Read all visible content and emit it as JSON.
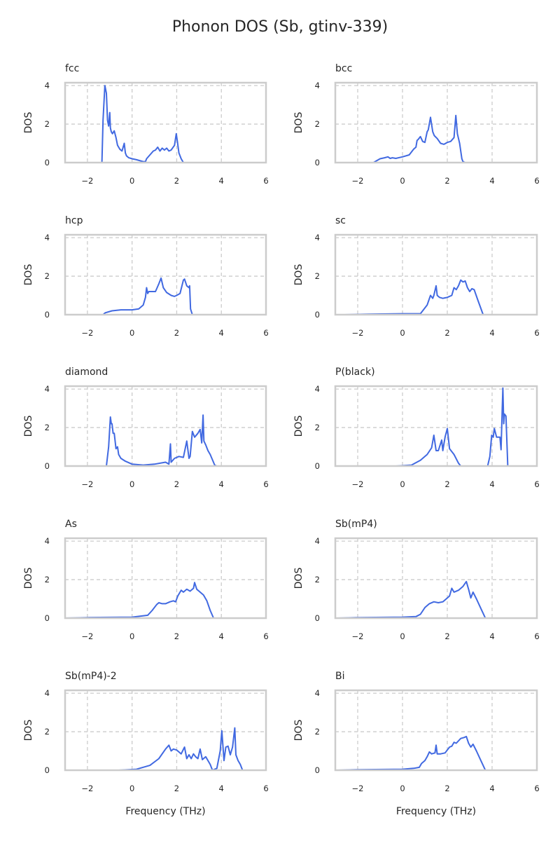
{
  "figure": {
    "title": "Phonon DOS (Sb, gtinv-339)"
  },
  "colors": {
    "line": "#4169e1",
    "frame": "#cccccc",
    "grid": "#cccccc",
    "text": "#262626"
  },
  "chart_data": [
    {
      "type": "line",
      "title": "fcc",
      "xlabel": "",
      "ylabel": "DOS",
      "xlim": [
        -3,
        6
      ],
      "ylim": [
        0,
        4.15
      ],
      "xticks": [
        "−2",
        "0",
        "2",
        "4",
        "6"
      ],
      "xtick_values": [
        -2,
        0,
        2,
        4,
        6
      ],
      "yticks": [
        "0",
        "2",
        "4"
      ],
      "ytick_values": [
        0,
        2,
        4
      ],
      "grid": true,
      "x": [
        -1.7,
        -1.35,
        -1.3,
        -1.22,
        -1.15,
        -1.1,
        -1.05,
        -1.0,
        -0.97,
        -0.93,
        -0.88,
        -0.8,
        -0.72,
        -0.65,
        -0.55,
        -0.45,
        -0.35,
        -0.3,
        -0.25,
        -0.15,
        0.0,
        0.2,
        0.5,
        0.6,
        0.65,
        0.8,
        0.95,
        1.05,
        1.15,
        1.25,
        1.35,
        1.45,
        1.55,
        1.65,
        1.75,
        1.9,
        1.98,
        2.03,
        2.1,
        2.2,
        2.3,
        2.6
      ],
      "y": [
        0,
        0,
        2.2,
        4.0,
        3.6,
        2.2,
        1.9,
        2.6,
        1.8,
        1.6,
        1.5,
        1.65,
        1.3,
        0.9,
        0.7,
        0.6,
        1.0,
        0.5,
        0.35,
        0.25,
        0.2,
        0.15,
        0.05,
        0.05,
        0.2,
        0.4,
        0.6,
        0.65,
        0.8,
        0.6,
        0.75,
        0.65,
        0.75,
        0.6,
        0.65,
        0.9,
        1.5,
        1.1,
        0.5,
        0.2,
        0.0,
        0.0
      ]
    },
    {
      "type": "line",
      "title": "bcc",
      "xlabel": "",
      "ylabel": "DOS",
      "xlim": [
        -3,
        6
      ],
      "ylim": [
        0,
        4.15
      ],
      "xticks": [
        "−2",
        "0",
        "2",
        "4",
        "6"
      ],
      "xtick_values": [
        -2,
        0,
        2,
        4,
        6
      ],
      "yticks": [
        "0",
        "2",
        "4"
      ],
      "ytick_values": [
        0,
        2,
        4
      ],
      "grid": true,
      "x": [
        -1.7,
        -1.3,
        -1.0,
        -0.8,
        -0.65,
        -0.55,
        -0.45,
        -0.3,
        0.0,
        0.3,
        0.5,
        0.6,
        0.65,
        0.7,
        0.8,
        0.9,
        1.0,
        1.1,
        1.15,
        1.25,
        1.35,
        1.42,
        1.55,
        1.7,
        1.85,
        2.0,
        2.15,
        2.3,
        2.38,
        2.45,
        2.55,
        2.65,
        2.7,
        2.8,
        3.0
      ],
      "y": [
        0,
        0,
        0.2,
        0.25,
        0.3,
        0.22,
        0.25,
        0.22,
        0.3,
        0.4,
        0.7,
        0.8,
        1.15,
        1.2,
        1.35,
        1.1,
        1.05,
        1.6,
        1.7,
        2.35,
        1.6,
        1.4,
        1.25,
        1.0,
        0.95,
        1.05,
        1.1,
        1.3,
        2.45,
        1.5,
        1.0,
        0.2,
        0.05,
        0,
        0
      ]
    },
    {
      "type": "line",
      "title": "hcp",
      "xlabel": "",
      "ylabel": "DOS",
      "xlim": [
        -3,
        6
      ],
      "ylim": [
        0,
        4.15
      ],
      "xticks": [
        "−2",
        "0",
        "2",
        "4",
        "6"
      ],
      "xtick_values": [
        -2,
        0,
        2,
        4,
        6
      ],
      "yticks": [
        "0",
        "2",
        "4"
      ],
      "ytick_values": [
        0,
        2,
        4
      ],
      "grid": true,
      "x": [
        -1.7,
        -1.3,
        -1.2,
        -0.9,
        -0.5,
        0.0,
        0.3,
        0.5,
        0.6,
        0.65,
        0.7,
        0.75,
        0.8,
        0.9,
        1.05,
        1.2,
        1.3,
        1.4,
        1.55,
        1.75,
        1.9,
        2.0,
        2.15,
        2.3,
        2.35,
        2.45,
        2.55,
        2.58,
        2.62,
        2.7,
        3.0
      ],
      "y": [
        0,
        0,
        0.1,
        0.2,
        0.25,
        0.25,
        0.3,
        0.5,
        0.9,
        1.4,
        1.1,
        1.2,
        1.2,
        1.2,
        1.2,
        1.6,
        1.9,
        1.4,
        1.15,
        1.0,
        0.95,
        1.0,
        1.1,
        1.8,
        1.85,
        1.5,
        1.4,
        1.5,
        0.3,
        0.0,
        0.0
      ]
    },
    {
      "type": "line",
      "title": "sc",
      "xlabel": "",
      "ylabel": "DOS",
      "xlim": [
        -3,
        6
      ],
      "ylim": [
        0,
        4.15
      ],
      "xticks": [
        "−2",
        "0",
        "2",
        "4",
        "6"
      ],
      "xtick_values": [
        -2,
        0,
        2,
        4,
        6
      ],
      "yticks": [
        "0",
        "2",
        "4"
      ],
      "ytick_values": [
        0,
        2,
        4
      ],
      "grid": true,
      "x": [
        -2.6,
        -1.5,
        0.0,
        0.8,
        0.9,
        1.1,
        1.25,
        1.35,
        1.4,
        1.5,
        1.55,
        1.65,
        1.8,
        2.0,
        2.2,
        2.3,
        2.4,
        2.5,
        2.6,
        2.7,
        2.8,
        2.9,
        3.0,
        3.1,
        3.2,
        3.35,
        3.6,
        4.2
      ],
      "y": [
        0,
        0.03,
        0.05,
        0.05,
        0.2,
        0.5,
        1.0,
        0.85,
        1.0,
        1.5,
        1.0,
        0.9,
        0.85,
        0.9,
        1.0,
        1.4,
        1.3,
        1.5,
        1.8,
        1.7,
        1.75,
        1.4,
        1.2,
        1.35,
        1.3,
        0.8,
        0.0,
        0.0
      ]
    },
    {
      "type": "line",
      "title": "diamond",
      "xlabel": "",
      "ylabel": "DOS",
      "xlim": [
        -3,
        6
      ],
      "ylim": [
        0,
        4.15
      ],
      "xticks": [
        "−2",
        "0",
        "2",
        "4",
        "6"
      ],
      "xtick_values": [
        -2,
        0,
        2,
        4,
        6
      ],
      "yticks": [
        "0",
        "2",
        "4"
      ],
      "ytick_values": [
        0,
        2,
        4
      ],
      "grid": true,
      "x": [
        -1.7,
        -1.15,
        -1.05,
        -0.97,
        -0.93,
        -0.9,
        -0.85,
        -0.8,
        -0.72,
        -0.65,
        -0.6,
        -0.5,
        -0.3,
        0.0,
        0.5,
        1.0,
        1.5,
        1.65,
        1.72,
        1.75,
        1.9,
        2.1,
        2.3,
        2.45,
        2.55,
        2.6,
        2.7,
        2.8,
        2.95,
        3.05,
        3.12,
        3.18,
        3.22,
        3.3,
        3.4,
        3.5,
        3.7,
        3.8,
        4.2
      ],
      "y": [
        0,
        0,
        1.0,
        2.55,
        2.2,
        2.2,
        1.7,
        1.7,
        0.9,
        1.0,
        0.6,
        0.4,
        0.25,
        0.1,
        0.05,
        0.1,
        0.2,
        0.1,
        1.15,
        0.2,
        0.4,
        0.5,
        0.45,
        1.3,
        0.4,
        0.5,
        1.8,
        1.5,
        1.7,
        1.9,
        1.2,
        2.65,
        1.3,
        1.1,
        0.8,
        0.6,
        0.05,
        0.0,
        0.0
      ]
    },
    {
      "type": "line",
      "title": "P(black)",
      "xlabel": "",
      "ylabel": "DOS",
      "xlim": [
        -3,
        6
      ],
      "ylim": [
        0,
        4.15
      ],
      "xticks": [
        "−2",
        "0",
        "2",
        "4",
        "6"
      ],
      "xtick_values": [
        -2,
        0,
        2,
        4,
        6
      ],
      "yticks": [
        "0",
        "2",
        "4"
      ],
      "ytick_values": [
        0,
        2,
        4
      ],
      "grid": true,
      "x": [
        -0.3,
        0.4,
        0.8,
        1.1,
        1.3,
        1.4,
        1.5,
        1.6,
        1.75,
        1.8,
        1.9,
        2.0,
        2.1,
        2.3,
        2.5,
        2.6,
        3.8,
        3.9,
        3.98,
        4.05,
        4.1,
        4.2,
        4.35,
        4.4,
        4.45,
        4.48,
        4.52,
        4.55,
        4.62,
        4.7,
        5.2
      ],
      "y": [
        0,
        0.05,
        0.3,
        0.6,
        0.95,
        1.6,
        0.8,
        0.8,
        1.35,
        0.8,
        1.5,
        1.95,
        0.9,
        0.6,
        0.15,
        0.0,
        0.0,
        0.5,
        1.6,
        1.5,
        1.95,
        1.5,
        1.5,
        0.85,
        2.9,
        4.05,
        2.2,
        2.7,
        2.6,
        0.0,
        0.0
      ]
    },
    {
      "type": "line",
      "title": "As",
      "xlabel": "",
      "ylabel": "DOS",
      "xlim": [
        -3,
        6
      ],
      "ylim": [
        0,
        4.15
      ],
      "xticks": [
        "−2",
        "0",
        "2",
        "4",
        "6"
      ],
      "xtick_values": [
        -2,
        0,
        2,
        4,
        6
      ],
      "yticks": [
        "0",
        "2",
        "4"
      ],
      "ytick_values": [
        0,
        2,
        4
      ],
      "grid": true,
      "x": [
        -3,
        -2,
        0.0,
        0.7,
        0.9,
        1.1,
        1.2,
        1.35,
        1.5,
        1.7,
        1.85,
        1.95,
        2.05,
        2.2,
        2.3,
        2.45,
        2.6,
        2.75,
        2.8,
        2.9,
        3.0,
        3.1,
        3.2,
        3.35,
        3.5,
        3.65,
        4.4
      ],
      "y": [
        0,
        0.03,
        0.05,
        0.15,
        0.4,
        0.7,
        0.8,
        0.75,
        0.75,
        0.85,
        0.9,
        0.85,
        1.15,
        1.45,
        1.35,
        1.5,
        1.4,
        1.55,
        1.85,
        1.5,
        1.4,
        1.3,
        1.2,
        0.9,
        0.4,
        0.0,
        0.0
      ]
    },
    {
      "type": "line",
      "title": "Sb(mP4)",
      "xlabel": "",
      "ylabel": "DOS",
      "xlim": [
        -3,
        6
      ],
      "ylim": [
        0,
        4.15
      ],
      "xticks": [
        "−2",
        "0",
        "2",
        "4",
        "6"
      ],
      "xtick_values": [
        -2,
        0,
        2,
        4,
        6
      ],
      "yticks": [
        "0",
        "2",
        "4"
      ],
      "ytick_values": [
        0,
        2,
        4
      ],
      "grid": true,
      "x": [
        -2.9,
        -2,
        0.0,
        0.6,
        0.8,
        1.0,
        1.2,
        1.4,
        1.6,
        1.8,
        2.0,
        2.1,
        2.2,
        2.3,
        2.5,
        2.7,
        2.85,
        2.95,
        3.05,
        3.15,
        3.3,
        3.5,
        3.7,
        4.3
      ],
      "y": [
        0,
        0.03,
        0.05,
        0.08,
        0.2,
        0.55,
        0.75,
        0.85,
        0.8,
        0.85,
        1.05,
        1.15,
        1.55,
        1.35,
        1.45,
        1.65,
        1.9,
        1.5,
        1.05,
        1.35,
        1.0,
        0.5,
        0.0,
        0.0
      ]
    },
    {
      "type": "line",
      "title": "Sb(mP4)-2",
      "xlabel": "Frequency (THz)",
      "ylabel": "DOS",
      "xlim": [
        -3,
        6
      ],
      "ylim": [
        0,
        4.15
      ],
      "xticks": [
        "−2",
        "0",
        "2",
        "4",
        "6"
      ],
      "xtick_values": [
        -2,
        0,
        2,
        4,
        6
      ],
      "yticks": [
        "0",
        "2",
        "4"
      ],
      "ytick_values": [
        0,
        2,
        4
      ],
      "grid": true,
      "x": [
        -0.6,
        0.2,
        0.8,
        1.2,
        1.5,
        1.65,
        1.75,
        1.85,
        2.0,
        2.2,
        2.35,
        2.45,
        2.55,
        2.65,
        2.75,
        2.85,
        2.95,
        3.05,
        3.15,
        3.3,
        3.5,
        3.6,
        3.8,
        3.95,
        4.02,
        4.12,
        4.2,
        4.3,
        4.4,
        4.5,
        4.6,
        4.65,
        4.75,
        4.85,
        4.95,
        5.4
      ],
      "y": [
        0,
        0.05,
        0.25,
        0.6,
        1.1,
        1.3,
        1.0,
        1.1,
        1.05,
        0.85,
        1.2,
        0.6,
        0.8,
        0.6,
        0.85,
        0.7,
        0.6,
        1.1,
        0.55,
        0.7,
        0.3,
        0.0,
        0.1,
        1.0,
        2.05,
        0.5,
        1.2,
        1.25,
        0.8,
        1.2,
        2.2,
        0.8,
        0.5,
        0.3,
        0.0,
        0.0
      ]
    },
    {
      "type": "line",
      "title": "Bi",
      "xlabel": "Frequency (THz)",
      "ylabel": "DOS",
      "xlim": [
        -3,
        6
      ],
      "ylim": [
        0,
        4.15
      ],
      "xticks": [
        "−2",
        "0",
        "2",
        "4",
        "6"
      ],
      "xtick_values": [
        -2,
        0,
        2,
        4,
        6
      ],
      "yticks": [
        "0",
        "2",
        "4"
      ],
      "ytick_values": [
        0,
        2,
        4
      ],
      "grid": true,
      "x": [
        -2.9,
        -2,
        0.0,
        0.5,
        0.75,
        0.85,
        1.0,
        1.1,
        1.2,
        1.3,
        1.45,
        1.5,
        1.55,
        1.7,
        1.9,
        2.1,
        2.2,
        2.3,
        2.4,
        2.6,
        2.75,
        2.85,
        2.95,
        3.05,
        3.15,
        3.3,
        3.5,
        3.7,
        4.3
      ],
      "y": [
        0,
        0.03,
        0.05,
        0.1,
        0.15,
        0.35,
        0.5,
        0.7,
        0.95,
        0.85,
        0.9,
        1.3,
        0.85,
        0.85,
        0.9,
        1.2,
        1.25,
        1.45,
        1.4,
        1.65,
        1.7,
        1.75,
        1.4,
        1.2,
        1.35,
        1.0,
        0.5,
        0.0,
        0.0
      ]
    }
  ]
}
